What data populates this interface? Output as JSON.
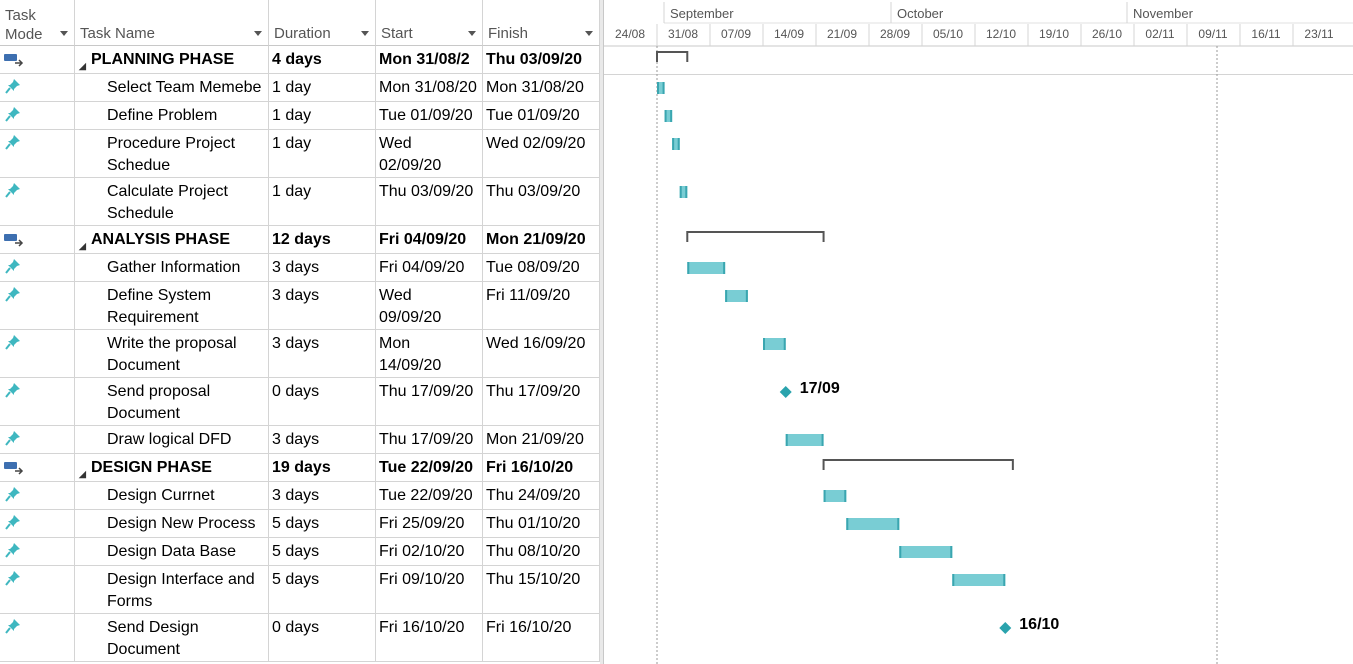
{
  "columns": {
    "task_mode": "Task\nMode",
    "task_name": "Task Name",
    "duration": "Duration",
    "start": "Start",
    "finish": "Finish"
  },
  "timescale": {
    "months": [
      "September",
      "October",
      "November"
    ],
    "weeks": [
      "24/08",
      "31/08",
      "07/09",
      "14/09",
      "21/09",
      "28/09",
      "05/10",
      "12/10",
      "19/10",
      "26/10",
      "02/11",
      "09/11",
      "16/11",
      "23/11"
    ]
  },
  "tasks": [
    {
      "type": "summary",
      "mode_icon": "auto-schedule-icon",
      "name": "PLANNING PHASE",
      "duration": "4 days",
      "start": "Mon 31/08/2",
      "finish": "Thu 03/09/20",
      "bar_start_day": 0,
      "bar_end_day": 4
    },
    {
      "type": "task",
      "mode_icon": "manual-pin-icon",
      "name": "Select Team Memebe",
      "duration": "1 day",
      "start": "Mon 31/08/20",
      "finish": "Mon 31/08/20",
      "bar_start_day": 0,
      "bar_end_day": 1
    },
    {
      "type": "task",
      "mode_icon": "manual-pin-icon",
      "name": "Define Problem",
      "duration": "1 day",
      "start": "Tue 01/09/20",
      "finish": "Tue 01/09/20",
      "bar_start_day": 1,
      "bar_end_day": 2
    },
    {
      "type": "task",
      "mode_icon": "manual-pin-icon",
      "name": "Procedure Project\nSchedue",
      "duration": "1 day",
      "start": "Wed\n02/09/20",
      "finish": "Wed 02/09/20",
      "bar_start_day": 2,
      "bar_end_day": 3
    },
    {
      "type": "task",
      "mode_icon": "manual-pin-icon",
      "name": "Calculate Project\nSchedule",
      "duration": "1 day",
      "start": "Thu 03/09/20",
      "finish": "Thu 03/09/20",
      "bar_start_day": 3,
      "bar_end_day": 4
    },
    {
      "type": "summary",
      "mode_icon": "auto-schedule-icon",
      "name": "ANALYSIS PHASE",
      "duration": "12 days",
      "start": "Fri 04/09/20",
      "finish": "Mon 21/09/20",
      "bar_start_day": 4,
      "bar_end_day": 22
    },
    {
      "type": "task",
      "mode_icon": "manual-pin-icon",
      "name": "Gather Information",
      "duration": "3 days",
      "start": "Fri 04/09/20",
      "finish": "Tue 08/09/20",
      "bar_start_day": 4,
      "bar_end_day": 9
    },
    {
      "type": "task",
      "mode_icon": "manual-pin-icon",
      "name": "Define System\nRequirement",
      "duration": "3 days",
      "start": "Wed\n09/09/20",
      "finish": "Fri 11/09/20",
      "bar_start_day": 9,
      "bar_end_day": 12
    },
    {
      "type": "task",
      "mode_icon": "manual-pin-icon",
      "name": "Write the proposal\nDocument",
      "duration": "3 days",
      "start": "Mon\n14/09/20",
      "finish": "Wed 16/09/20",
      "bar_start_day": 14,
      "bar_end_day": 17
    },
    {
      "type": "milestone",
      "mode_icon": "manual-pin-icon",
      "name": "Send proposal\nDocument",
      "duration": "0 days",
      "start": "Thu 17/09/20",
      "finish": "Thu 17/09/20",
      "bar_start_day": 17,
      "bar_end_day": 17,
      "milestone_label": "17/09"
    },
    {
      "type": "task",
      "mode_icon": "manual-pin-icon",
      "name": "Draw logical DFD",
      "duration": "3 days",
      "start": "Thu 17/09/20",
      "finish": "Mon 21/09/20",
      "bar_start_day": 17,
      "bar_end_day": 22
    },
    {
      "type": "summary",
      "mode_icon": "auto-schedule-icon",
      "name": "DESIGN PHASE",
      "duration": "19 days",
      "start": "Tue 22/09/20",
      "finish": "Fri 16/10/20",
      "bar_start_day": 22,
      "bar_end_day": 47
    },
    {
      "type": "task",
      "mode_icon": "manual-pin-icon",
      "name": "Design Currnet Proces",
      "duration": "3 days",
      "start": "Tue 22/09/20",
      "finish": "Thu 24/09/20",
      "bar_start_day": 22,
      "bar_end_day": 25
    },
    {
      "type": "task",
      "mode_icon": "manual-pin-icon",
      "name": "Design New Process",
      "duration": "5 days",
      "start": "Fri 25/09/20",
      "finish": "Thu 01/10/20",
      "bar_start_day": 25,
      "bar_end_day": 32
    },
    {
      "type": "task",
      "mode_icon": "manual-pin-icon",
      "name": "Design Data Base",
      "duration": "5 days",
      "start": "Fri 02/10/20",
      "finish": "Thu 08/10/20",
      "bar_start_day": 32,
      "bar_end_day": 39
    },
    {
      "type": "task",
      "mode_icon": "manual-pin-icon",
      "name": "Design Interface and\nForms",
      "duration": "5 days",
      "start": "Fri 09/10/20",
      "finish": "Thu 15/10/20",
      "bar_start_day": 39,
      "bar_end_day": 46
    },
    {
      "type": "milestone",
      "mode_icon": "manual-pin-icon",
      "name": "Send Design\nDocument",
      "duration": "0 days",
      "start": "Fri 16/10/20",
      "finish": "Fri 16/10/20",
      "bar_start_day": 46,
      "bar_end_day": 46,
      "milestone_label": "16/10"
    }
  ],
  "colors": {
    "task_bar": "#79cdd4",
    "task_bar_edge": "#3aa6b0",
    "milestone": "#2aa3ad",
    "summary_line": "#555555",
    "pin": "#3fb7c0",
    "auto_icon": "#3d6fb0"
  }
}
